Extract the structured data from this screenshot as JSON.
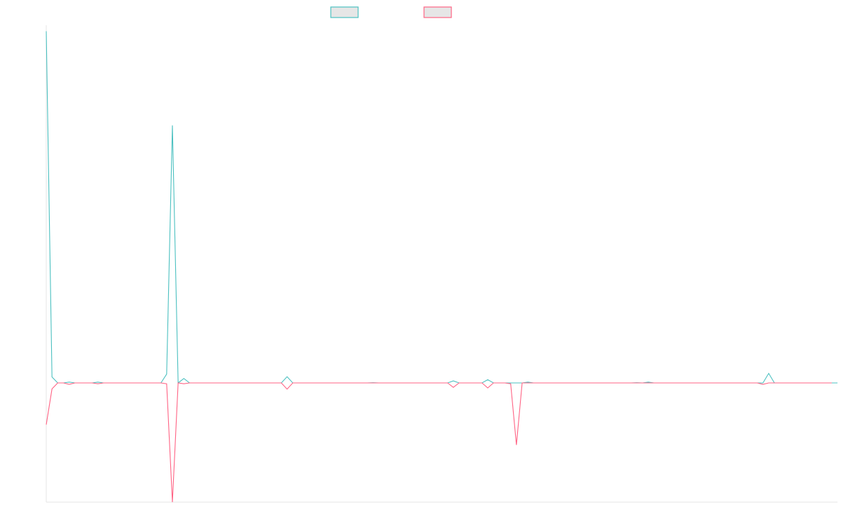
{
  "chart_data": {
    "type": "line",
    "title": "",
    "xlabel": "",
    "ylabel": "",
    "ylim": [
      -100,
      300
    ],
    "grid": false,
    "legend_position": "top-center",
    "series": [
      {
        "color": "#4bc0c0",
        "values": [
          295,
          5,
          0,
          0,
          0.7,
          0,
          0,
          0,
          0,
          0.7,
          0,
          0,
          0,
          0,
          0,
          0,
          0,
          0,
          0,
          0,
          0,
          7.4,
          216,
          0,
          3.7,
          0,
          0,
          0,
          0,
          0,
          0,
          0,
          0,
          0,
          0,
          0,
          0,
          0,
          0,
          0,
          0,
          0,
          5.2,
          0,
          0,
          0,
          0,
          0,
          0,
          0,
          0,
          0,
          0,
          0,
          0,
          0,
          0,
          0.2,
          0,
          0,
          0,
          0,
          0,
          0,
          0,
          0,
          0,
          0,
          0,
          0,
          0,
          1.7,
          0,
          0,
          0,
          0,
          0,
          2.7,
          0,
          0,
          0,
          0,
          0,
          0,
          0.7,
          0,
          0,
          0,
          0,
          0,
          0,
          0,
          0,
          0,
          0,
          0,
          0,
          0,
          0,
          0,
          0,
          0,
          0,
          0.2,
          0,
          0.7,
          0,
          0,
          0,
          0,
          0,
          0,
          0,
          0,
          0,
          0,
          0,
          0,
          0,
          0,
          0,
          0,
          0,
          0,
          0,
          0,
          8,
          0,
          0,
          0,
          0,
          0,
          0,
          0,
          0,
          0,
          0,
          0,
          0
        ]
      },
      {
        "color": "#ff6384",
        "values": [
          -35,
          -5,
          0,
          0,
          -1.2,
          0,
          0,
          0,
          0,
          -0.7,
          0,
          0,
          0,
          0,
          0,
          0,
          0,
          0,
          0,
          0,
          0,
          -0.7,
          -100,
          0,
          -0.7,
          0,
          0,
          0,
          0,
          0,
          0,
          0,
          0,
          0,
          0,
          0,
          0,
          0,
          0,
          0,
          0,
          0,
          -5.2,
          0,
          0,
          0,
          0,
          0,
          0,
          0,
          0,
          0,
          0,
          0,
          0,
          0,
          0,
          0,
          0,
          0,
          0,
          0,
          0,
          0,
          0,
          0,
          0,
          0,
          0,
          0,
          0,
          -3.7,
          0,
          0,
          0,
          0,
          0,
          -4.2,
          0,
          0,
          0,
          -0.7,
          -52,
          0,
          0,
          0,
          0,
          0,
          0,
          0,
          0,
          0,
          0,
          0,
          0,
          0,
          0,
          0,
          0,
          0,
          0,
          0,
          0,
          0,
          0,
          0,
          0,
          0,
          0,
          0,
          0,
          0,
          0,
          0,
          0,
          0,
          0,
          0,
          0,
          0,
          0,
          0,
          0,
          0,
          0,
          -1.2,
          0,
          0,
          0,
          0,
          0,
          0,
          0,
          0,
          0,
          0,
          0,
          0
        ]
      }
    ]
  }
}
